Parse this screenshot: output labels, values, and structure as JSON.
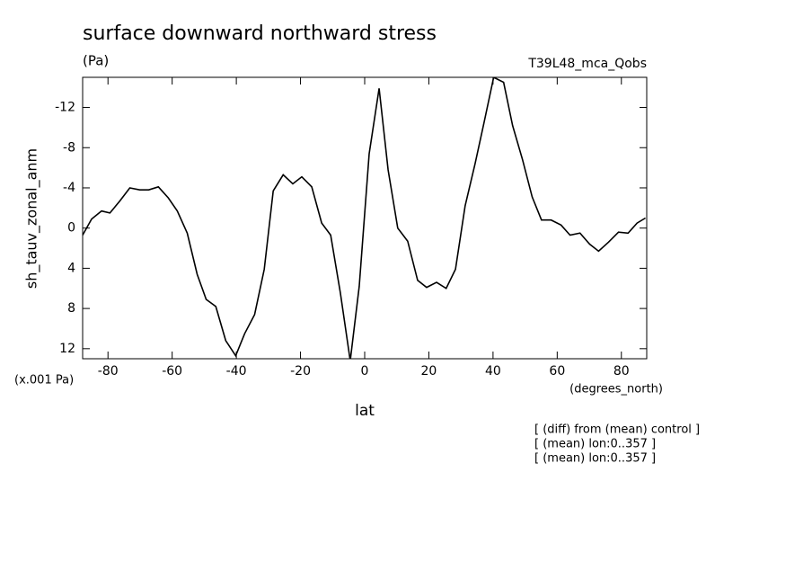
{
  "chart_data": {
    "type": "line",
    "title": "surface downward northward stress",
    "units": "(Pa)",
    "experiment": "T39L48_mca_Qobs",
    "y_label": "sh_tauv_zonal_anm",
    "y_scale_note": "(x.001 Pa)",
    "x_units": "(degrees_north)",
    "x_label": "lat",
    "notes": [
      "[ (diff) from (mean) control ]",
      "[ (mean) lon:0..357 ]",
      "[ (mean) lon:0..357 ]"
    ],
    "xlim": [
      -87.9,
      87.9
    ],
    "xticks": [
      -80,
      -60,
      -40,
      -20,
      0,
      20,
      40,
      60,
      80
    ],
    "ylim": [
      13,
      -15
    ],
    "yticks": [
      12,
      8,
      4,
      0,
      -4,
      -8,
      -12
    ],
    "color": "#000000",
    "x": [
      -87.9,
      -85.1,
      -82.0,
      -79.4,
      -76.3,
      -73.2,
      -70.1,
      -67.3,
      -64.3,
      -61.2,
      -58.4,
      -55.3,
      -52.2,
      -49.4,
      -46.4,
      -43.3,
      -40.2,
      -37.4,
      -34.3,
      -31.3,
      -28.5,
      -25.4,
      -22.4,
      -19.6,
      -16.5,
      -13.4,
      -10.6,
      -7.6,
      -4.5,
      -1.7,
      1.4,
      4.5,
      7.3,
      10.3,
      13.4,
      16.5,
      19.3,
      22.4,
      25.4,
      28.3,
      31.3,
      34.4,
      37.2,
      40.2,
      43.3,
      46.1,
      49.2,
      52.2,
      55.1,
      58.1,
      61.2,
      64.0,
      67.1,
      70.1,
      72.9,
      76.0,
      79.1,
      82.1,
      84.9,
      87.5
    ],
    "values": [
      0.7,
      -0.9,
      -1.7,
      -1.5,
      -2.7,
      -4.0,
      -3.8,
      -3.8,
      -4.1,
      -3.0,
      -1.7,
      0.5,
      4.6,
      7.1,
      7.8,
      11.2,
      12.7,
      10.5,
      8.6,
      4.1,
      -3.7,
      -5.3,
      -4.4,
      -5.1,
      -4.1,
      -0.5,
      0.7,
      6.4,
      13.2,
      5.8,
      -7.4,
      -13.9,
      -5.8,
      0.0,
      1.3,
      5.2,
      5.9,
      5.4,
      6.0,
      4.1,
      -2.2,
      -6.4,
      -10.5,
      -15.0,
      -14.5,
      -10.2,
      -6.8,
      -3.1,
      -0.8,
      -0.8,
      -0.3,
      0.7,
      0.5,
      1.6,
      2.3,
      1.4,
      0.4,
      0.5,
      -0.5,
      -1.0
    ]
  }
}
